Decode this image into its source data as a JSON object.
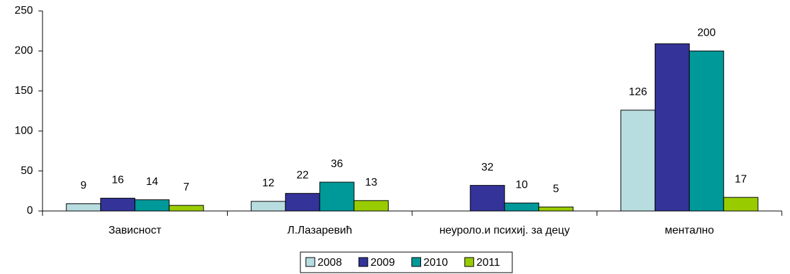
{
  "chart_data": {
    "type": "bar",
    "categories": [
      "Зависност",
      "Л.Лазаревић",
      "неуроло.и психиј. за децу",
      "ментално"
    ],
    "series": [
      {
        "name": "2008",
        "color": "#b8dde0",
        "values": [
          9,
          12,
          null,
          126
        ],
        "value_labels": [
          "9",
          "12",
          null,
          "126"
        ]
      },
      {
        "name": "2009",
        "color": "#333399",
        "values": [
          16,
          22,
          32,
          209
        ],
        "value_labels": [
          "16",
          "22",
          "32",
          null
        ]
      },
      {
        "name": "2010",
        "color": "#009999",
        "values": [
          14,
          36,
          10,
          200
        ],
        "value_labels": [
          "14",
          "36",
          "10",
          "200"
        ]
      },
      {
        "name": "2011",
        "color": "#99cc00",
        "values": [
          7,
          13,
          5,
          17
        ],
        "value_labels": [
          "7",
          "13",
          "5",
          "17"
        ]
      }
    ],
    "ylim": [
      0,
      250
    ],
    "yticks": [
      0,
      50,
      100,
      150,
      200,
      250
    ],
    "grid": false,
    "legend": "bottom"
  }
}
